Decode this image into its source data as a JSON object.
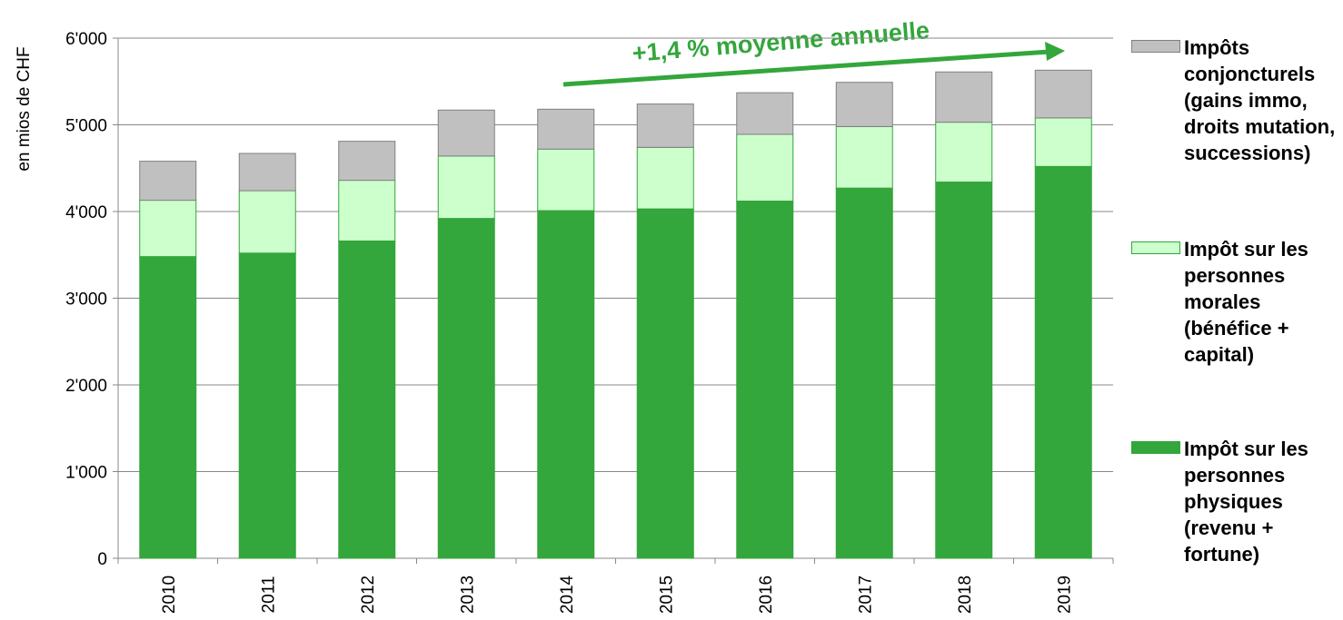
{
  "chart_data": {
    "type": "bar",
    "stacked": true,
    "y_label": "en mios de CHF",
    "annotation": "+1,4 % moyenne annuelle",
    "categories": [
      "2010",
      "2011",
      "2012",
      "2013",
      "2014",
      "2015",
      "2016",
      "2017",
      "2018",
      "2019"
    ],
    "series": [
      {
        "name": "Impôt sur les personnes physiques (revenu + fortune)",
        "color": "#33a63c",
        "values": [
          3480,
          3520,
          3660,
          3920,
          4010,
          4030,
          4120,
          4270,
          4340,
          4520
        ]
      },
      {
        "name": "Impôt sur les personnes morales (bénéfice + capital)",
        "color": "#ccffcc",
        "values": [
          650,
          720,
          700,
          720,
          710,
          710,
          770,
          710,
          690,
          560
        ]
      },
      {
        "name": "Impôts conjoncturels (gains immo, droits mutation, successions)",
        "color": "#c0c0c0",
        "values": [
          450,
          430,
          450,
          530,
          460,
          500,
          480,
          510,
          580,
          550
        ]
      }
    ],
    "ylim": [
      0,
      6000
    ],
    "yticks": [
      0,
      {
        "value": 1000,
        "label": "1'000"
      },
      {
        "value": 2000,
        "label": "2'000"
      },
      {
        "value": 3000,
        "label": "3'000"
      },
      {
        "value": 4000,
        "label": "4'000"
      },
      {
        "value": 5000,
        "label": "5'000"
      },
      {
        "value": 6000,
        "label": "6'000"
      }
    ],
    "grid": true
  }
}
